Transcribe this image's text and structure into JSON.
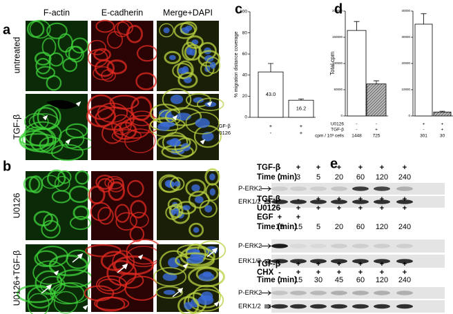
{
  "panel_a": {
    "letter": "a",
    "columns": [
      "F-actin",
      "E-cadherin",
      "Merge+DAPI"
    ],
    "rows": [
      "untreated",
      "TGF-β"
    ]
  },
  "panel_b": {
    "letter": "b",
    "rows": [
      "U0126",
      "U0126+TGF-β"
    ]
  },
  "chart_data": [
    {
      "type": "bar",
      "letter": "c",
      "ylabel": "% migration distance coverage",
      "ylim": [
        0,
        100
      ],
      "yticks": [
        0,
        20,
        40,
        60,
        80,
        100
      ],
      "values": [
        43.0,
        16.2
      ],
      "errors": [
        8,
        1.2
      ],
      "value_labels": [
        "43.0",
        "16.2"
      ],
      "hatched": [
        false,
        false
      ],
      "conditions": [
        {
          "label": "TGF-β",
          "values": [
            "+",
            "+"
          ]
        },
        {
          "label": "U0126",
          "values": [
            "-",
            "+"
          ]
        }
      ]
    },
    {
      "type": "bar",
      "letter": "d",
      "ylabel": "Total cpm",
      "ylim": [
        0,
        200000
      ],
      "yticks": [
        0,
        50000,
        100000,
        150000,
        200000
      ],
      "values": [
        163000,
        61000
      ],
      "errors": [
        17000,
        6000
      ],
      "hatched": [
        false,
        true
      ],
      "conditions": [
        {
          "label": "U0126",
          "values": [
            "-",
            "-"
          ]
        },
        {
          "label": "TGF-β",
          "values": [
            "-",
            "+"
          ]
        },
        {
          "label": "cpm / 10³ cells",
          "values": [
            "1448",
            "725"
          ]
        }
      ]
    },
    {
      "type": "bar",
      "ylim": [
        0,
        40000
      ],
      "yticks": [
        0,
        10000,
        20000,
        30000,
        40000
      ],
      "values": [
        35000,
        1500
      ],
      "errors": [
        4000,
        300
      ],
      "hatched": [
        false,
        true
      ],
      "conditions": [
        {
          "values": [
            "+",
            "+"
          ]
        },
        {
          "values": [
            "-",
            "+"
          ]
        },
        {
          "values": [
            "301",
            "30"
          ]
        }
      ]
    }
  ],
  "panel_e": {
    "letter": "e",
    "blocks": [
      {
        "headers": [
          {
            "label": "TGF-β",
            "values": [
              "-",
              "+",
              "+",
              "+",
              "+",
              "+",
              "+"
            ]
          },
          {
            "label": "Time (min)",
            "values": [
              "0",
              "3",
              "5",
              "20",
              "60",
              "120",
              "240"
            ]
          }
        ],
        "blots": [
          "P-ERK2",
          "ERK1/2"
        ]
      },
      {
        "headers": [
          {
            "label": "TGF-β",
            "values": [
              "-",
              "-",
              "+",
              "+",
              "+",
              "+",
              "+"
            ]
          },
          {
            "label": "U0126",
            "values": [
              "-",
              "+",
              "+",
              "+",
              "+",
              "+",
              "+"
            ]
          },
          {
            "label": "EGF",
            "values": [
              "+",
              "+",
              null,
              null,
              null,
              null,
              null
            ]
          },
          {
            "label": "Time (min)",
            "values": [
              "15",
              "15",
              "5",
              "20",
              "60",
              "120",
              "240"
            ]
          }
        ],
        "blots": [
          "P-ERK2",
          "ERK1/2"
        ]
      },
      {
        "headers": [
          {
            "label": "TGF-β",
            "values": [
              "-",
              "+",
              "+",
              "+",
              "+",
              "+",
              "+"
            ]
          },
          {
            "label": "CHX",
            "values": [
              "-",
              "+",
              "+",
              "+",
              "+",
              "+",
              "+"
            ]
          },
          {
            "label": "Time (min)",
            "values": [
              "0",
              "15",
              "30",
              "45",
              "60",
              "120",
              "240"
            ]
          }
        ],
        "blots": [
          "P-ERK2",
          "ERK1/2"
        ]
      }
    ]
  }
}
